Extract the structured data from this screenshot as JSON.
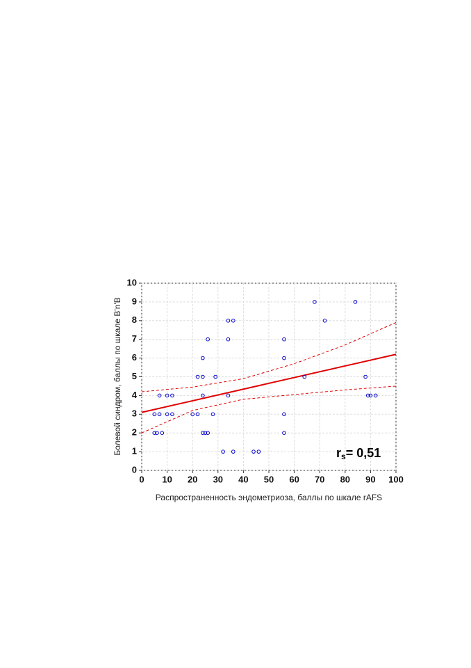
{
  "chart_data": {
    "type": "scatter",
    "xlabel": "Распространенность эндометриоза, баллы по шкале rAFS",
    "ylabel": "Болевой синдром, баллы по шкале B'n'B",
    "annotation": {
      "main": "r",
      "sub": "s",
      "rest": "= 0,51"
    },
    "series": [
      {
        "color": "#0000cc",
        "x": [
          68,
          84,
          34,
          36,
          72,
          26,
          34,
          56,
          24,
          56,
          22,
          24,
          29,
          64,
          88,
          7,
          10,
          12,
          24,
          34,
          89,
          90,
          92,
          5,
          7,
          10,
          12,
          20,
          22,
          28,
          56,
          5,
          6,
          8,
          24,
          25,
          26,
          56,
          32,
          36,
          44,
          46
        ],
        "values": [
          9,
          9,
          8,
          8,
          8,
          7,
          7,
          7,
          6,
          6,
          5,
          5,
          5,
          5,
          5,
          4,
          4,
          4,
          4,
          4,
          4,
          4,
          4,
          3,
          3,
          3,
          3,
          3,
          3,
          3,
          3,
          2,
          2,
          2,
          2,
          2,
          2,
          2,
          1,
          1,
          1,
          1
        ]
      }
    ],
    "fit": {
      "color": "#e00000",
      "x": [
        0,
        100
      ],
      "values": [
        3.1,
        6.2
      ]
    },
    "ci_upper": {
      "color": "#e00000",
      "x": [
        0,
        20,
        40,
        60,
        80,
        100
      ],
      "values": [
        4.2,
        4.45,
        4.9,
        5.7,
        6.7,
        7.9
      ]
    },
    "ci_lower": {
      "color": "#e00000",
      "x": [
        0,
        20,
        40,
        60,
        80,
        100
      ],
      "values": [
        2.0,
        3.2,
        3.8,
        4.05,
        4.3,
        4.5
      ]
    },
    "xlim": [
      0,
      100
    ],
    "xticks": [
      0,
      10,
      20,
      30,
      40,
      50,
      60,
      70,
      80,
      90,
      100
    ],
    "ylim": [
      0,
      10
    ],
    "yticks": [
      0,
      1,
      2,
      3,
      4,
      5,
      6,
      7,
      8,
      9,
      10
    ],
    "grid": true
  }
}
